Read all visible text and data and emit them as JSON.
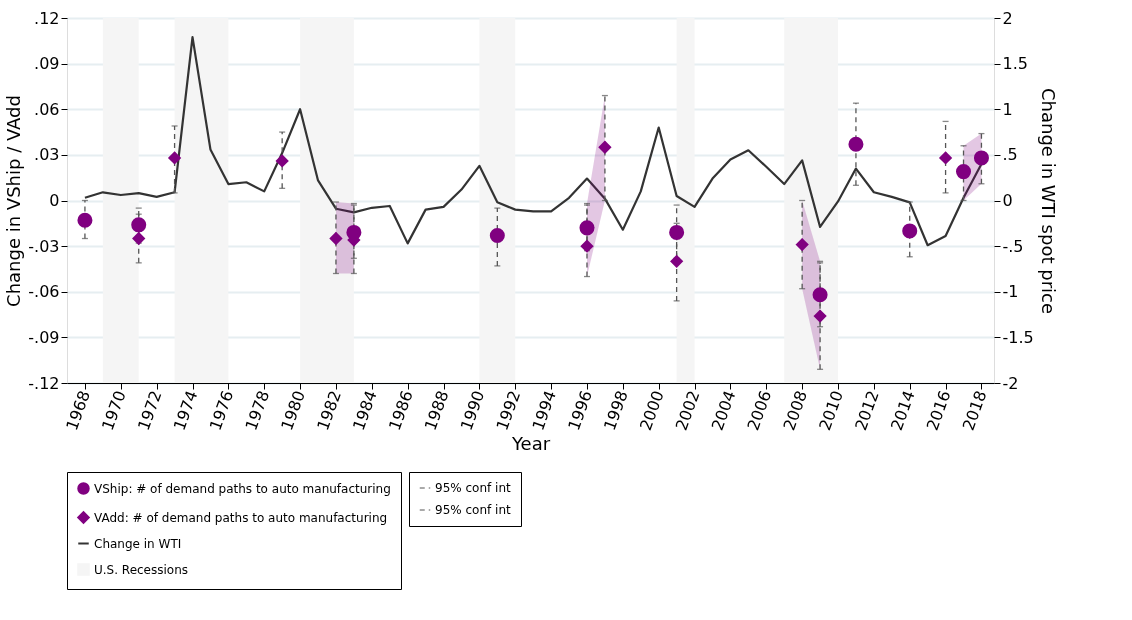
{
  "chart_data": {
    "type": "scatter",
    "xlabel": "Year",
    "ylabel": "Change in VShip / VAdd",
    "y2label": "Change in WTI spot price",
    "xlim": [
      1967,
      2018.7
    ],
    "xticks": [
      1968,
      1970,
      1972,
      1974,
      1976,
      1978,
      1980,
      1982,
      1984,
      1986,
      1988,
      1990,
      1992,
      1994,
      1996,
      1998,
      2000,
      2002,
      2004,
      2006,
      2008,
      2010,
      2012,
      2014,
      2016,
      2018
    ],
    "ylim": [
      -0.12,
      0.12
    ],
    "yticks": [
      {
        "value": 0.12,
        "label": ".12"
      },
      {
        "value": 0.09,
        "label": ".09"
      },
      {
        "value": 0.06,
        "label": ".06"
      },
      {
        "value": 0.03,
        "label": ".03"
      },
      0,
      {
        "value": -0.03,
        "label": "-.03"
      },
      {
        "value": -0.06,
        "label": "-.06"
      },
      {
        "value": -0.09,
        "label": "-.09"
      },
      {
        "value": -0.12,
        "label": "-.12"
      }
    ],
    "y2lim": [
      -2,
      2
    ],
    "y2ticks": [
      2,
      1.5,
      1,
      {
        "value": 0.5,
        "label": ".5"
      },
      0,
      {
        "value": -0.5,
        "label": "-.5"
      },
      -1,
      -1.5,
      -2
    ],
    "grid": "y",
    "legend": "bottom",
    "series": [
      {
        "name": "VShip: # of demand paths to auto manufacturing",
        "marker": "circle",
        "color": "#800080",
        "x": [
          1968,
          1971,
          1983,
          1991,
          1996,
          2001,
          2009,
          2011,
          2014,
          2017,
          2018
        ],
        "values": [
          -0.013,
          -0.016,
          -0.021,
          -0.023,
          -0.018,
          -0.021,
          -0.062,
          0.037,
          -0.02,
          0.019,
          0.028
        ],
        "errors": [
          [
            -0.025,
            0.0
          ],
          [
            -0.028,
            -0.005
          ],
          [
            -0.038,
            -0.003
          ],
          [
            -0.043,
            -0.005
          ],
          [
            -0.033,
            -0.003
          ],
          [
            -0.038,
            -0.003
          ],
          [
            -0.083,
            -0.041
          ],
          [
            0.01,
            0.064
          ],
          [
            -0.037,
            -0.001
          ],
          [
            0.0,
            0.036
          ],
          [
            0.011,
            0.044
          ]
        ],
        "lower": [
          null,
          null,
          null,
          null,
          null,
          null,
          null,
          null,
          null,
          0.0,
          0.011
        ],
        "upper": [
          null,
          null,
          null,
          null,
          null,
          null,
          null,
          null,
          null,
          0.036,
          0.044
        ]
      },
      {
        "name": "VAdd: # of demand paths to auto manufacturing",
        "marker": "diamond",
        "color": "#800080",
        "x": [
          1971,
          1973,
          1979,
          1982,
          1983,
          1996,
          1997,
          2001,
          2008,
          2009,
          2016
        ],
        "values": [
          -0.025,
          0.028,
          0.026,
          -0.025,
          -0.026,
          -0.03,
          0.035,
          -0.04,
          -0.029,
          -0.076,
          0.028
        ],
        "errors": [
          [
            -0.041,
            -0.009
          ],
          [
            0.005,
            0.049
          ],
          [
            0.008,
            0.045
          ],
          [
            -0.048,
            -0.001
          ],
          [
            -0.048,
            -0.002
          ],
          [
            -0.05,
            -0.002
          ],
          [
            0.0,
            0.069
          ],
          [
            -0.066,
            -0.015
          ],
          [
            -0.058,
            0.0
          ],
          [
            -0.111,
            -0.04
          ],
          [
            0.005,
            0.052
          ]
        ],
        "lower": [
          null,
          null,
          null,
          -0.048,
          -0.048,
          -0.05,
          0.0,
          null,
          -0.058,
          -0.111,
          null
        ],
        "upper": [
          null,
          null,
          null,
          -0.001,
          -0.002,
          -0.002,
          0.069,
          null,
          0.0,
          -0.04,
          null
        ]
      },
      {
        "name": "Change in WTI",
        "type": "line",
        "axis": "y2",
        "color": "#333333",
        "line_style": "solid",
        "x": [
          1968,
          1969,
          1970,
          1971,
          1972,
          1973,
          1974,
          1975,
          1976,
          1977,
          1978,
          1979,
          1980,
          1981,
          1982,
          1983,
          1984,
          1985,
          1986,
          1987,
          1988,
          1989,
          1990,
          1991,
          1992,
          1993,
          1994,
          1995,
          1996,
          1997,
          1998,
          1999,
          2000,
          2001,
          2002,
          2003,
          2004,
          2005,
          2006,
          2007,
          2008,
          2009,
          2010,
          2011,
          2012,
          2013,
          2014,
          2015,
          2016,
          2017,
          2018
        ],
        "values": [
          0.03,
          0.09,
          0.06,
          0.08,
          0.04,
          0.09,
          1.79,
          0.56,
          0.18,
          0.2,
          0.1,
          0.52,
          1.0,
          0.22,
          -0.09,
          -0.13,
          -0.08,
          -0.06,
          -0.47,
          -0.1,
          -0.07,
          0.12,
          0.38,
          -0.02,
          -0.1,
          -0.12,
          -0.12,
          0.03,
          0.24,
          0.02,
          -0.32,
          0.1,
          0.8,
          0.05,
          -0.07,
          0.24,
          0.45,
          0.55,
          0.37,
          0.18,
          0.44,
          -0.29,
          -0.01,
          0.35,
          0.09,
          0.04,
          -0.02,
          -0.49,
          -0.39,
          0.03,
          0.4
        ]
      }
    ],
    "bands": [
      {
        "axis": "x",
        "from": 1969,
        "to": 1971,
        "label": "U.S. Recessions",
        "color": "#f5f5f5"
      },
      {
        "axis": "x",
        "from": 1973,
        "to": 1976,
        "color": "#f5f5f5"
      },
      {
        "axis": "x",
        "from": 1980,
        "to": 1983,
        "color": "#f5f5f5"
      },
      {
        "axis": "x",
        "from": 1990,
        "to": 1992,
        "color": "#f5f5f5"
      },
      {
        "axis": "x",
        "from": 2001,
        "to": 2002,
        "color": "#f5f5f5"
      },
      {
        "axis": "x",
        "from": 2007,
        "to": 2010,
        "color": "#f5f5f5"
      }
    ],
    "annotations": [
      "95% conf int",
      "95% conf int"
    ]
  }
}
